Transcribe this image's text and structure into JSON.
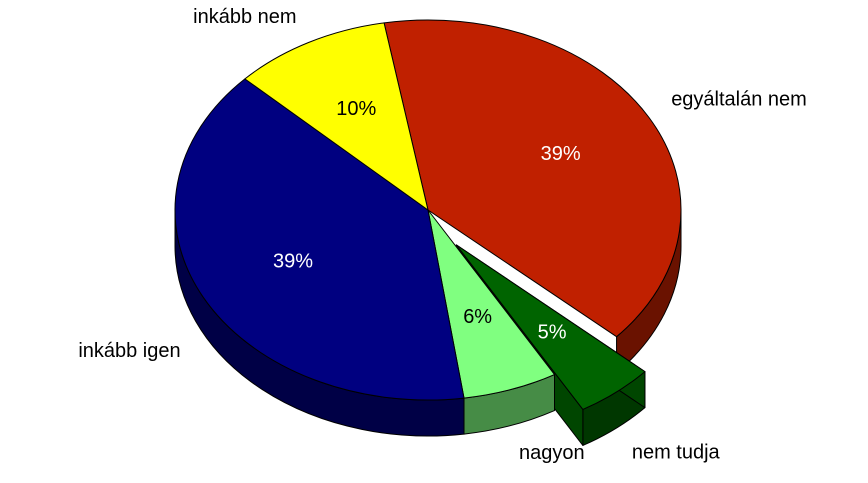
{
  "chart_data": {
    "type": "pie",
    "categories": [
      "egyáltalán nem",
      "nem tudja",
      "nagyon",
      "inkább igen",
      "inkább nem"
    ],
    "values": [
      39,
      5,
      6,
      39,
      10
    ],
    "value_labels": [
      "39%",
      "5%",
      "6%",
      "39%",
      "10%"
    ],
    "colors": [
      "#c02000",
      "#006400",
      "#80ff80",
      "#000080",
      "#ffff00"
    ],
    "exploded": [
      1
    ],
    "three_d": true
  }
}
